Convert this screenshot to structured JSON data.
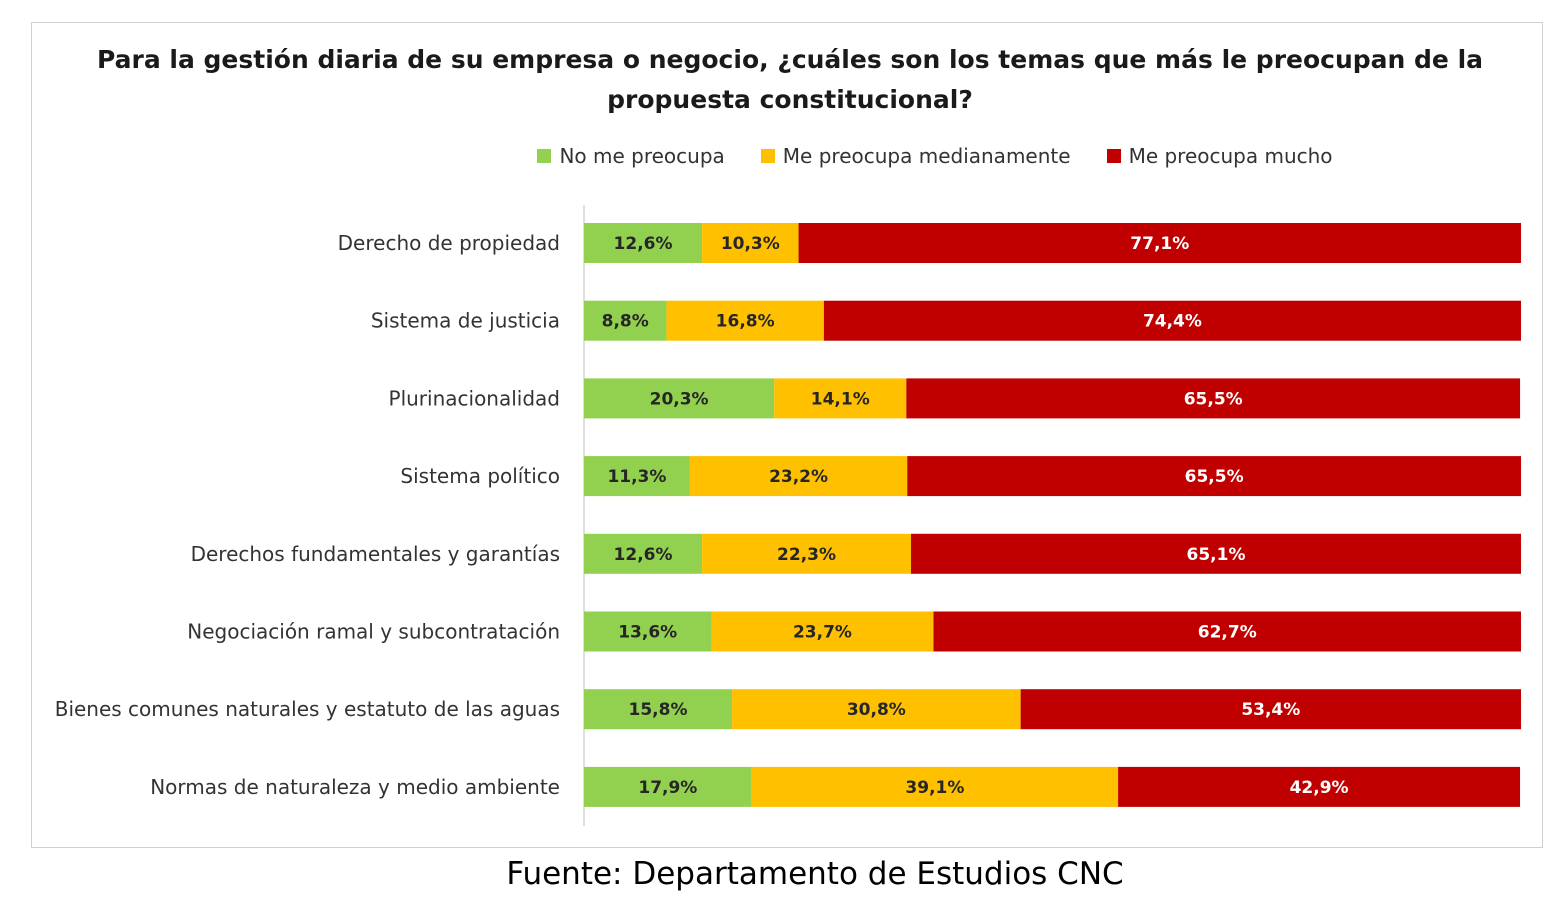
{
  "chart_data": {
    "type": "bar",
    "orientation": "horizontal",
    "stacked": true,
    "title": "Para la gestión diaria de su empresa o negocio, ¿cuáles son los temas que más le preocupan de la propuesta constitucional?",
    "categories": [
      "Derecho de propiedad",
      "Sistema de justicia",
      "Plurinacionalidad",
      "Sistema político",
      "Derechos fundamentales y garantías",
      "Negociación ramal y subcontratación",
      "Bienes comunes naturales y estatuto de las aguas",
      "Normas de naturaleza y medio ambiente"
    ],
    "series": [
      {
        "name": "No me preocupa",
        "color": "#92d050",
        "values": [
          12.6,
          8.8,
          20.3,
          11.3,
          12.6,
          13.6,
          15.8,
          17.9
        ],
        "labels": [
          "12,6%",
          "8,8%",
          "20,3%",
          "11,3%",
          "12,6%",
          "13,6%",
          "15,8%",
          "17,9%"
        ]
      },
      {
        "name": "Me preocupa medianamente",
        "color": "#ffc000",
        "values": [
          10.3,
          16.8,
          14.1,
          23.2,
          22.3,
          23.7,
          30.8,
          39.1
        ],
        "labels": [
          "10,3%",
          "16,8%",
          "14,1%",
          "23,2%",
          "22,3%",
          "23,7%",
          "30,8%",
          "39,1%"
        ]
      },
      {
        "name": "Me preocupa mucho",
        "color": "#c00000",
        "values": [
          77.1,
          74.4,
          65.5,
          65.5,
          65.1,
          62.7,
          53.4,
          42.9
        ],
        "labels": [
          "77,1%",
          "74,4%",
          "65,5%",
          "65,5%",
          "65,1%",
          "62,7%",
          "53,4%",
          "42,9%"
        ]
      }
    ],
    "xlim": [
      0,
      100
    ],
    "grid": false,
    "legend_position": "top"
  },
  "source_text": "Fuente: Departamento de Estudios CNC"
}
